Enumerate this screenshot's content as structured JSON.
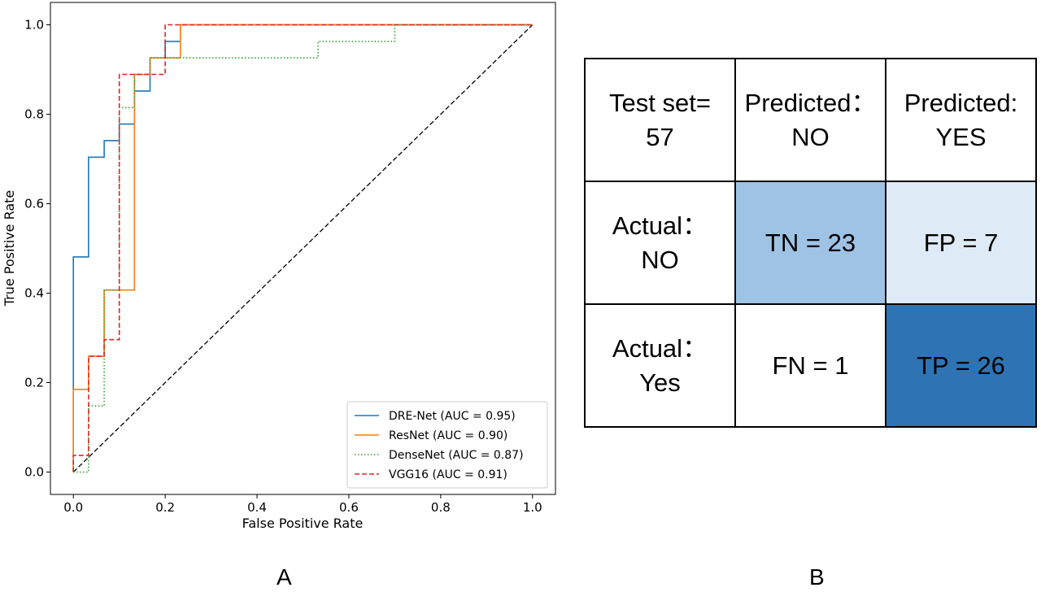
{
  "chart_data": [
    {
      "type": "line",
      "title": "",
      "xlabel": "False Positive Rate",
      "ylabel": "True Positive Rate",
      "xlim": [
        -0.05,
        1.05
      ],
      "ylim": [
        -0.05,
        1.05
      ],
      "xticks": [
        0.0,
        0.2,
        0.4,
        0.6,
        0.8,
        1.0
      ],
      "yticks": [
        0.0,
        0.2,
        0.4,
        0.6,
        0.8,
        1.0
      ],
      "xtick_labels": [
        "0.0",
        "0.2",
        "0.4",
        "0.6",
        "0.8",
        "1.0"
      ],
      "ytick_labels": [
        "0.0",
        "0.2",
        "0.4",
        "0.6",
        "0.8",
        "1.0"
      ],
      "grid": false,
      "legend_position": "lower-right",
      "series": [
        {
          "name": "DRE-Net (AUC = 0.95)",
          "color": "#1f77b4",
          "style": "solid",
          "x": [
            0,
            0,
            0.033,
            0.033,
            0.067,
            0.067,
            0.1,
            0.1,
            0.133,
            0.133,
            0.167,
            0.167,
            0.2,
            0.2,
            0.233,
            0.233,
            1
          ],
          "y": [
            0,
            0.481,
            0.481,
            0.704,
            0.704,
            0.741,
            0.741,
            0.778,
            0.778,
            0.852,
            0.852,
            0.926,
            0.926,
            0.963,
            0.963,
            1,
            1
          ]
        },
        {
          "name": "ResNet (AUC = 0.90)",
          "color": "#ff7f0e",
          "style": "solid",
          "x": [
            0,
            0,
            0.033,
            0.033,
            0.067,
            0.067,
            0.133,
            0.133,
            0.167,
            0.167,
            0.233,
            0.233,
            1
          ],
          "y": [
            0,
            0.185,
            0.185,
            0.259,
            0.259,
            0.407,
            0.407,
            0.889,
            0.889,
            0.926,
            0.926,
            1,
            1
          ]
        },
        {
          "name": "DenseNet (AUC = 0.87)",
          "color": "#2ca02c",
          "style": "dotted",
          "x": [
            0,
            0.033,
            0.033,
            0.067,
            0.067,
            0.1,
            0.1,
            0.133,
            0.133,
            0.167,
            0.167,
            0.533,
            0.533,
            0.7,
            0.7,
            1
          ],
          "y": [
            0,
            0,
            0.148,
            0.148,
            0.407,
            0.407,
            0.815,
            0.815,
            0.889,
            0.889,
            0.926,
            0.926,
            0.963,
            0.963,
            1,
            1
          ]
        },
        {
          "name": "VGG16 (AUC = 0.91)",
          "color": "#d62728",
          "style": "dashed",
          "x": [
            0,
            0,
            0.033,
            0.033,
            0.067,
            0.067,
            0.1,
            0.1,
            0.2,
            0.2,
            1
          ],
          "y": [
            0,
            0.037,
            0.037,
            0.259,
            0.259,
            0.296,
            0.296,
            0.889,
            0.889,
            1,
            1
          ]
        }
      ],
      "reference_line": {
        "x": [
          0,
          1
        ],
        "y": [
          0,
          1
        ],
        "color": "#000000",
        "style": "dashed"
      }
    },
    {
      "type": "table",
      "rows": [
        [
          "Test set=\n57",
          "Predicted：\nNO",
          "Predicted:\nYES"
        ],
        [
          "Actual：\nNO",
          "TN = 23",
          "FP = 7"
        ],
        [
          "Actual：\nYes",
          "FN = 1",
          "TP = 26"
        ]
      ],
      "cell_colors": [
        [
          "#ffffff",
          "#ffffff",
          "#ffffff"
        ],
        [
          "#ffffff",
          "#9fc3e5",
          "#deebf6"
        ],
        [
          "#ffffff",
          "#ffffff",
          "#2e74b5"
        ]
      ],
      "values": {
        "TN": 23,
        "FP": 7,
        "FN": 1,
        "TP": 26
      }
    }
  ],
  "panel_labels": {
    "left": "A",
    "right": "B"
  }
}
